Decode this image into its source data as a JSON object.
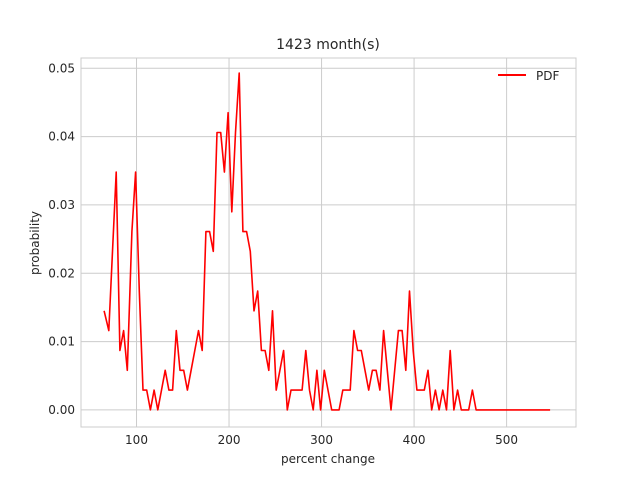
{
  "chart_data": {
    "type": "line",
    "title": "1423 month(s)",
    "xlabel": "percent change",
    "ylabel": "probability",
    "xlim": [
      40,
      575
    ],
    "ylim": [
      -0.0025,
      0.0515
    ],
    "xticks": [
      100,
      200,
      300,
      400,
      500
    ],
    "xtick_labels": [
      "100",
      "200",
      "300",
      "400",
      "500"
    ],
    "yticks": [
      0.0,
      0.01,
      0.02,
      0.03,
      0.04,
      0.05
    ],
    "ytick_labels": [
      "0.00",
      "0.01",
      "0.02",
      "0.03",
      "0.04",
      "0.05"
    ],
    "grid": true,
    "legend": "top-right",
    "series": [
      {
        "name": "PDF",
        "color": "#ff0000",
        "x": [
          65,
          70,
          74,
          78,
          82,
          86,
          90,
          95,
          99,
          103,
          107,
          111,
          115,
          119,
          123,
          127,
          131,
          135,
          139,
          143,
          147,
          151,
          155,
          159,
          163,
          167,
          171,
          175,
          179,
          183,
          187,
          191,
          195,
          199,
          203,
          207,
          211,
          215,
          219,
          223,
          227,
          231,
          235,
          239,
          243,
          247,
          251,
          255,
          259,
          263,
          267,
          271,
          275,
          279,
          283,
          287,
          291,
          295,
          299,
          303,
          307,
          311,
          315,
          319,
          323,
          327,
          331,
          335,
          339,
          343,
          347,
          351,
          355,
          359,
          363,
          367,
          371,
          375,
          379,
          383,
          387,
          391,
          395,
          399,
          403,
          407,
          411,
          415,
          419,
          423,
          427,
          431,
          435,
          439,
          443,
          447,
          451,
          455,
          459,
          463,
          467,
          471,
          475,
          479,
          483,
          487,
          491,
          495,
          499,
          503,
          507,
          511,
          515,
          519,
          523,
          527,
          531,
          535,
          539,
          543,
          547
        ],
        "y": [
          0.0145,
          0.0116,
          0.0232,
          0.0348,
          0.0087,
          0.0116,
          0.0058,
          0.0261,
          0.0348,
          0.0174,
          0.0029,
          0.0029,
          0.0,
          0.0029,
          0.0,
          0.0029,
          0.0058,
          0.0029,
          0.0029,
          0.0116,
          0.0058,
          0.0058,
          0.0029,
          0.0058,
          0.0087,
          0.0116,
          0.0087,
          0.0261,
          0.0261,
          0.0232,
          0.0406,
          0.0406,
          0.0348,
          0.0435,
          0.029,
          0.0406,
          0.0493,
          0.0261,
          0.0261,
          0.0232,
          0.0145,
          0.0174,
          0.0087,
          0.0087,
          0.0058,
          0.0145,
          0.0029,
          0.0058,
          0.0087,
          0.0,
          0.0029,
          0.0029,
          0.0029,
          0.0029,
          0.0087,
          0.0029,
          0.0,
          0.0058,
          0.0,
          0.0058,
          0.0029,
          0.0,
          0.0,
          0.0,
          0.0029,
          0.0029,
          0.0029,
          0.0116,
          0.0087,
          0.0087,
          0.0058,
          0.0029,
          0.0058,
          0.0058,
          0.0029,
          0.0116,
          0.0058,
          0.0,
          0.0058,
          0.0116,
          0.0116,
          0.0058,
          0.0174,
          0.0087,
          0.0029,
          0.0029,
          0.0029,
          0.0058,
          0.0,
          0.0029,
          0.0,
          0.0029,
          0.0,
          0.0087,
          0.0,
          0.0029,
          0.0,
          0.0,
          0.0,
          0.0029,
          0.0,
          0.0,
          0.0,
          0.0,
          0.0,
          0.0,
          0.0,
          0.0,
          0.0,
          0.0,
          0.0,
          0.0,
          0.0,
          0.0,
          0.0,
          0.0,
          0.0,
          0.0,
          0.0,
          0.0,
          0.0
        ]
      }
    ]
  }
}
